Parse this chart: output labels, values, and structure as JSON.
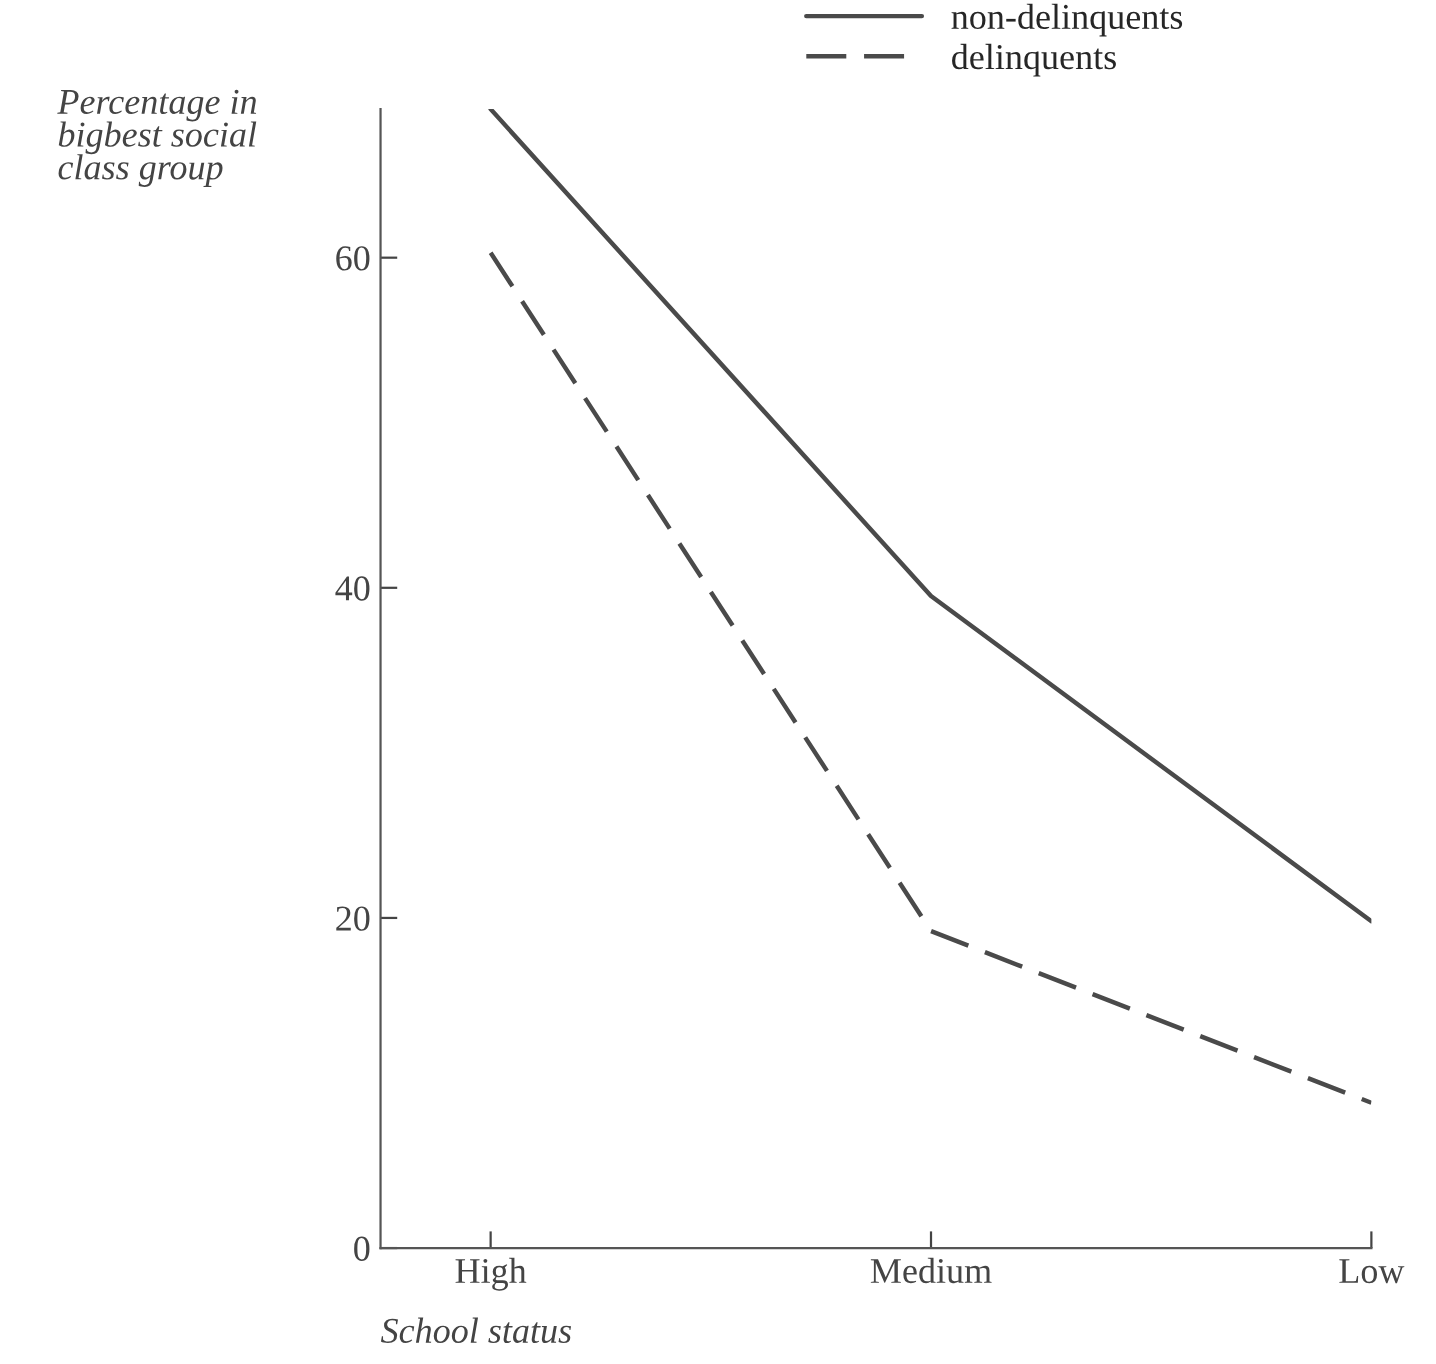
{
  "chart_data": {
    "type": "line",
    "xlabel": "School status",
    "ylabel": "Percentage in\nbigbest social\nclass group",
    "categories": [
      "High",
      "Medium",
      "Low"
    ],
    "series": [
      {
        "name": "non-delinquents",
        "color": "#4a4a4a",
        "values": [
          69,
          39.5,
          19.8
        ],
        "line_style": "solid"
      },
      {
        "name": "delinquents",
        "color": "#4a4a4a",
        "values": [
          60.3,
          19.2,
          8.8
        ],
        "line_style": "dashed"
      }
    ],
    "ylim": [
      0,
      69
    ],
    "yticks": [
      0,
      20,
      40,
      60
    ],
    "grid": false,
    "legend": "top",
    "marker": "none"
  }
}
